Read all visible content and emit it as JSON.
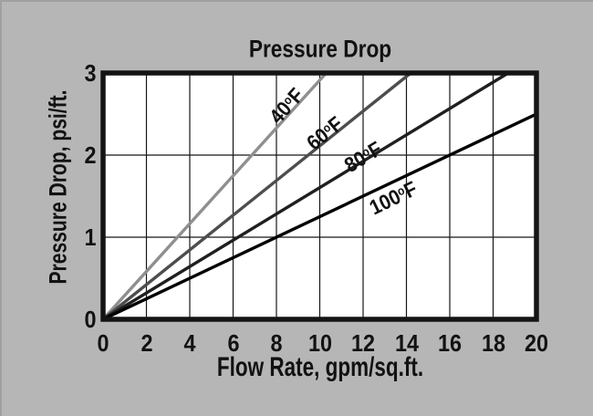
{
  "figure": {
    "background": "#b6b6b6",
    "plot_background": "#ffffff",
    "border_color": "#141414",
    "grid_color": "#161616",
    "text_color": "#121212"
  },
  "chart_data": {
    "type": "line",
    "title": "Pressure Drop",
    "xlabel": "Flow Rate, gpm/sq.ft.",
    "ylabel": "Pressure Drop, psi/ft.",
    "xlim": [
      0,
      20
    ],
    "ylim": [
      0,
      3
    ],
    "x_ticks": [
      0,
      2,
      4,
      6,
      8,
      10,
      12,
      14,
      16,
      18,
      20
    ],
    "y_ticks": [
      0,
      1,
      2,
      3
    ],
    "grid": "on",
    "legend_position": "inline rotated labels on lines",
    "series": [
      {
        "name": "40°F",
        "color": "#8f8f8f",
        "slope_psi_per_gpm": 0.29,
        "points": [
          [
            0,
            0
          ],
          [
            10.3,
            3
          ]
        ],
        "label": {
          "x": 314,
          "y": 116,
          "rotation": -48
        }
      },
      {
        "name": "60°F",
        "color": "#4d4d4d",
        "slope_psi_per_gpm": 0.21,
        "points": [
          [
            0,
            0
          ],
          [
            14.2,
            3
          ]
        ],
        "label": {
          "x": 356,
          "y": 146,
          "rotation": -39
        }
      },
      {
        "name": "80°F",
        "color": "#1f1f1f",
        "slope_psi_per_gpm": 0.16,
        "points": [
          [
            0,
            0
          ],
          [
            18.7,
            3
          ]
        ],
        "label": {
          "x": 398,
          "y": 172,
          "rotation": -31
        }
      },
      {
        "name": "100°F",
        "color": "#000000",
        "slope_psi_per_gpm": 0.125,
        "points": [
          [
            0,
            0
          ],
          [
            20,
            2.5
          ]
        ],
        "label": {
          "x": 431,
          "y": 217,
          "rotation": -26
        }
      }
    ]
  }
}
